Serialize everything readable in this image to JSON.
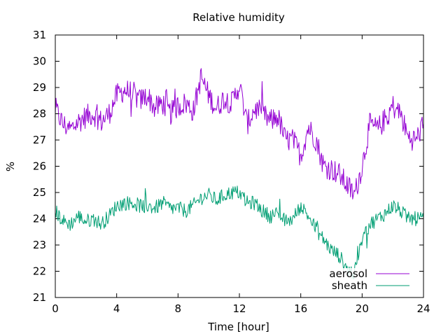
{
  "chart_data": {
    "type": "line",
    "title": "Relative humidity",
    "xlabel": "Time [hour]",
    "ylabel": "%",
    "xlim": [
      0,
      24
    ],
    "ylim": [
      21,
      31
    ],
    "xticks": [
      0,
      4,
      8,
      12,
      16,
      20,
      24
    ],
    "yticks": [
      21,
      22,
      23,
      24,
      25,
      26,
      27,
      28,
      29,
      30,
      31
    ],
    "grid": false,
    "legend_position": "bottom-right",
    "series": [
      {
        "name": "aerosol",
        "color": "#9400d3",
        "x": [
          0,
          0.5,
          1,
          1.5,
          2,
          2.5,
          3,
          3.5,
          4,
          4.5,
          5,
          5.5,
          6,
          6.5,
          7,
          7.5,
          8,
          8.5,
          9,
          9.5,
          10,
          10.5,
          11,
          11.5,
          12,
          12.5,
          13,
          13.5,
          14,
          14.5,
          15,
          15.5,
          16,
          16.5,
          17,
          17.5,
          18,
          18.5,
          19,
          19.5,
          20,
          20.5,
          21,
          21.5,
          22,
          22.5,
          23,
          23.5,
          24
        ],
        "y": [
          28.2,
          27.6,
          27.4,
          27.7,
          27.9,
          28.0,
          27.7,
          28.0,
          28.7,
          28.9,
          28.8,
          28.5,
          28.7,
          28.2,
          28.4,
          28.0,
          28.3,
          28.4,
          28.1,
          29.4,
          28.7,
          28.2,
          28.6,
          28.4,
          29.1,
          27.6,
          28.2,
          28.0,
          27.7,
          27.9,
          27.0,
          27.0,
          26.4,
          27.5,
          27.0,
          26.0,
          25.9,
          25.7,
          25.3,
          24.9,
          26.0,
          27.6,
          27.4,
          27.8,
          28.3,
          28.0,
          27.1,
          27.0,
          27.6
        ]
      },
      {
        "name": "sheath",
        "color": "#009e73",
        "x": [
          0,
          0.5,
          1,
          1.5,
          2,
          2.5,
          3,
          3.5,
          4,
          4.5,
          5,
          5.5,
          6,
          6.5,
          7,
          7.5,
          8,
          8.5,
          9,
          9.5,
          10,
          10.5,
          11,
          11.5,
          12,
          12.5,
          13,
          13.5,
          14,
          14.5,
          15,
          15.5,
          16,
          16.5,
          17,
          17.5,
          18,
          18.5,
          19,
          19.5,
          20,
          20.5,
          21,
          21.5,
          22,
          22.5,
          23,
          23.5,
          24
        ],
        "y": [
          24.3,
          23.9,
          23.8,
          24.1,
          23.9,
          24.0,
          23.8,
          24.1,
          24.5,
          24.6,
          24.6,
          24.5,
          24.5,
          24.4,
          24.6,
          24.4,
          24.4,
          24.3,
          24.5,
          24.8,
          24.9,
          24.7,
          24.9,
          25.0,
          25.0,
          24.6,
          24.6,
          24.3,
          24.1,
          24.2,
          23.9,
          24.0,
          24.5,
          24.1,
          23.6,
          23.2,
          22.8,
          22.6,
          22.1,
          21.9,
          23.2,
          23.8,
          24.0,
          24.2,
          24.5,
          24.3,
          24.0,
          24.0,
          24.0
        ]
      }
    ]
  }
}
